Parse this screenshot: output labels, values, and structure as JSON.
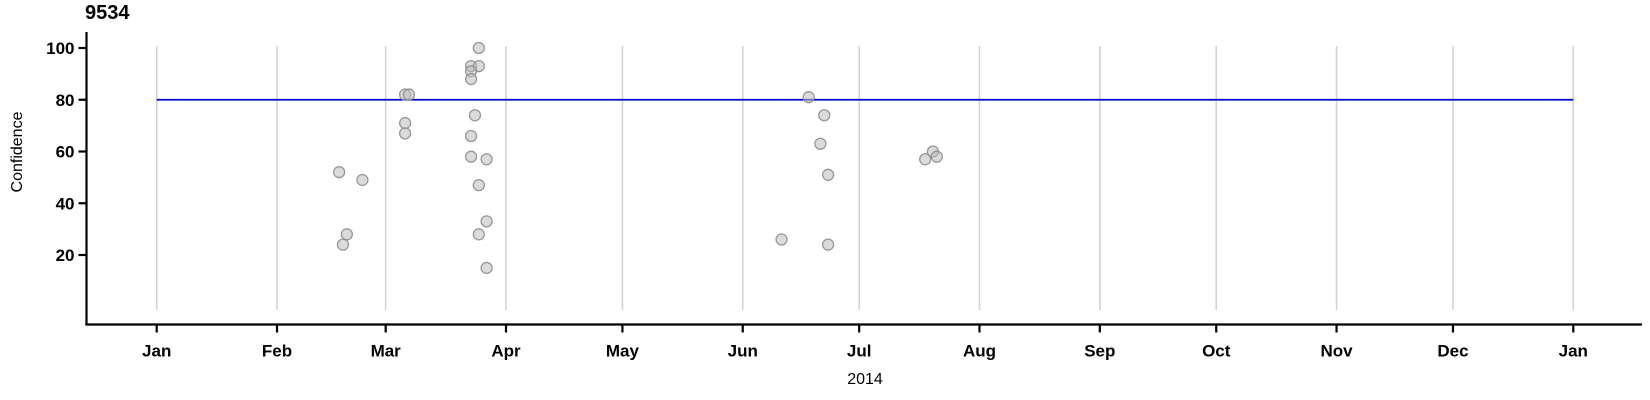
{
  "chart_data": {
    "type": "scatter",
    "title": "9534",
    "ylabel": "Confidence",
    "xlabel": "2014",
    "legend": "none",
    "grid": "vertical-month-gridlines",
    "x_axis": {
      "unit": "date",
      "year": "2014",
      "range_days": [
        0,
        365
      ],
      "ticks": [
        {
          "label": "Jan",
          "day": 0
        },
        {
          "label": "Feb",
          "day": 31
        },
        {
          "label": "Mar",
          "day": 59
        },
        {
          "label": "Apr",
          "day": 90
        },
        {
          "label": "May",
          "day": 120
        },
        {
          "label": "Jun",
          "day": 151
        },
        {
          "label": "Jul",
          "day": 181
        },
        {
          "label": "Aug",
          "day": 212
        },
        {
          "label": "Sep",
          "day": 243
        },
        {
          "label": "Oct",
          "day": 273
        },
        {
          "label": "Nov",
          "day": 304
        },
        {
          "label": "Dec",
          "day": 334
        },
        {
          "label": "Jan",
          "day": 365
        }
      ]
    },
    "y_axis": {
      "ticks": [
        20,
        40,
        60,
        80,
        100
      ],
      "range": [
        0,
        105
      ]
    },
    "reference_line": {
      "y": 80
    },
    "points": [
      {
        "date": "Feb 17",
        "day": 47,
        "confidence": 52
      },
      {
        "date": "Feb 18",
        "day": 48,
        "confidence": 24
      },
      {
        "date": "Feb 19",
        "day": 49,
        "confidence": 28
      },
      {
        "date": "Feb 23",
        "day": 53,
        "confidence": 49
      },
      {
        "date": "Mar 6",
        "day": 64,
        "confidence": 82
      },
      {
        "date": "Mar 7",
        "day": 65,
        "confidence": 82
      },
      {
        "date": "Mar 6",
        "day": 64,
        "confidence": 71
      },
      {
        "date": "Mar 6",
        "day": 64,
        "confidence": 67
      },
      {
        "date": "Mar 25",
        "day": 83,
        "confidence": 100
      },
      {
        "date": "Mar 23",
        "day": 81,
        "confidence": 93
      },
      {
        "date": "Mar 25",
        "day": 83,
        "confidence": 93
      },
      {
        "date": "Mar 23",
        "day": 81,
        "confidence": 91
      },
      {
        "date": "Mar 23",
        "day": 81,
        "confidence": 88
      },
      {
        "date": "Mar 24",
        "day": 82,
        "confidence": 74
      },
      {
        "date": "Mar 23",
        "day": 81,
        "confidence": 66
      },
      {
        "date": "Mar 23",
        "day": 81,
        "confidence": 58
      },
      {
        "date": "Mar 27",
        "day": 85,
        "confidence": 57
      },
      {
        "date": "Mar 25",
        "day": 83,
        "confidence": 47
      },
      {
        "date": "Mar 27",
        "day": 85,
        "confidence": 33
      },
      {
        "date": "Mar 25",
        "day": 83,
        "confidence": 28
      },
      {
        "date": "Mar 27",
        "day": 85,
        "confidence": 15
      },
      {
        "date": "Jun 11",
        "day": 161,
        "confidence": 26
      },
      {
        "date": "Jun 18",
        "day": 168,
        "confidence": 81
      },
      {
        "date": "Jun 22",
        "day": 172,
        "confidence": 74
      },
      {
        "date": "Jun 21",
        "day": 171,
        "confidence": 63
      },
      {
        "date": "Jun 23",
        "day": 173,
        "confidence": 51
      },
      {
        "date": "Jun 23",
        "day": 173,
        "confidence": 24
      },
      {
        "date": "Jul 18",
        "day": 198,
        "confidence": 57
      },
      {
        "date": "Jul 20",
        "day": 200,
        "confidence": 60
      },
      {
        "date": "Jul 21",
        "day": 201,
        "confidence": 58
      }
    ],
    "colors": {
      "reference_line": "#0000cc",
      "gridline": "#d3d3d3",
      "axis": "#000000",
      "point_fill": "#bebebe",
      "point_stroke": "#8f8f8f",
      "text": "#000000"
    }
  }
}
